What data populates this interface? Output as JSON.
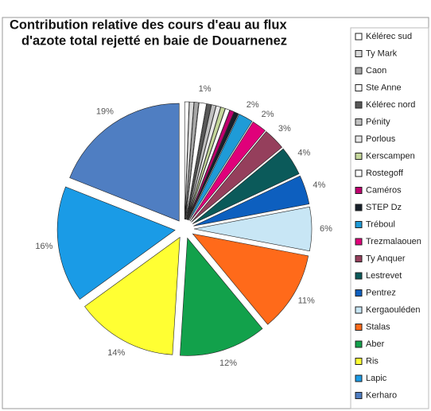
{
  "chart_data": {
    "type": "pie",
    "title": [
      "Contribution relative des cours d'eau au flux",
      "d'azote total rejetté en baie de Douarnenez"
    ],
    "categories": [
      "Kélérec sud",
      "Ty Mark",
      "Caon",
      "Ste Anne",
      "Kélérec nord",
      "Pénity",
      "Porlous",
      "Kerscampen",
      "Rostegoff",
      "Caméros",
      "STEP Dz",
      "Tréboul",
      "Trezmalaouen",
      "Ty Anquer",
      "Lestrevet",
      "Pentrez",
      "Kergaouléden",
      "Stalas",
      "Aber",
      "Ris",
      "Lapic",
      "Kerharo"
    ],
    "values": [
      0.6,
      0.6,
      0.6,
      1,
      0.6,
      0.6,
      0.6,
      0.6,
      0.6,
      0.6,
      0.6,
      2,
      2,
      3,
      4,
      4,
      6,
      11,
      12,
      14,
      16,
      19
    ],
    "value_labels": [
      null,
      null,
      null,
      "1%",
      null,
      null,
      null,
      null,
      null,
      null,
      null,
      "2%",
      "2%",
      "3%",
      "4%",
      "4%",
      "6%",
      "11%",
      "12%",
      "14%",
      "16%",
      "19%"
    ],
    "colors": [
      "#ffffff",
      "#d9d9d9",
      "#a6a6a6",
      "#ffffff",
      "#595959",
      "#bfbfbf",
      "#e8e8e8",
      "#c4d79b",
      "#ffffff",
      "#c0006f",
      "#17202a",
      "#1f9bd7",
      "#e0007a",
      "#953f5c",
      "#0b5a5a",
      "#0d5fbf",
      "#c8e6f5",
      "#ff6a1a",
      "#12a14b",
      "#ffff33",
      "#1a9be6",
      "#4f7ec2"
    ],
    "legend": "right"
  }
}
